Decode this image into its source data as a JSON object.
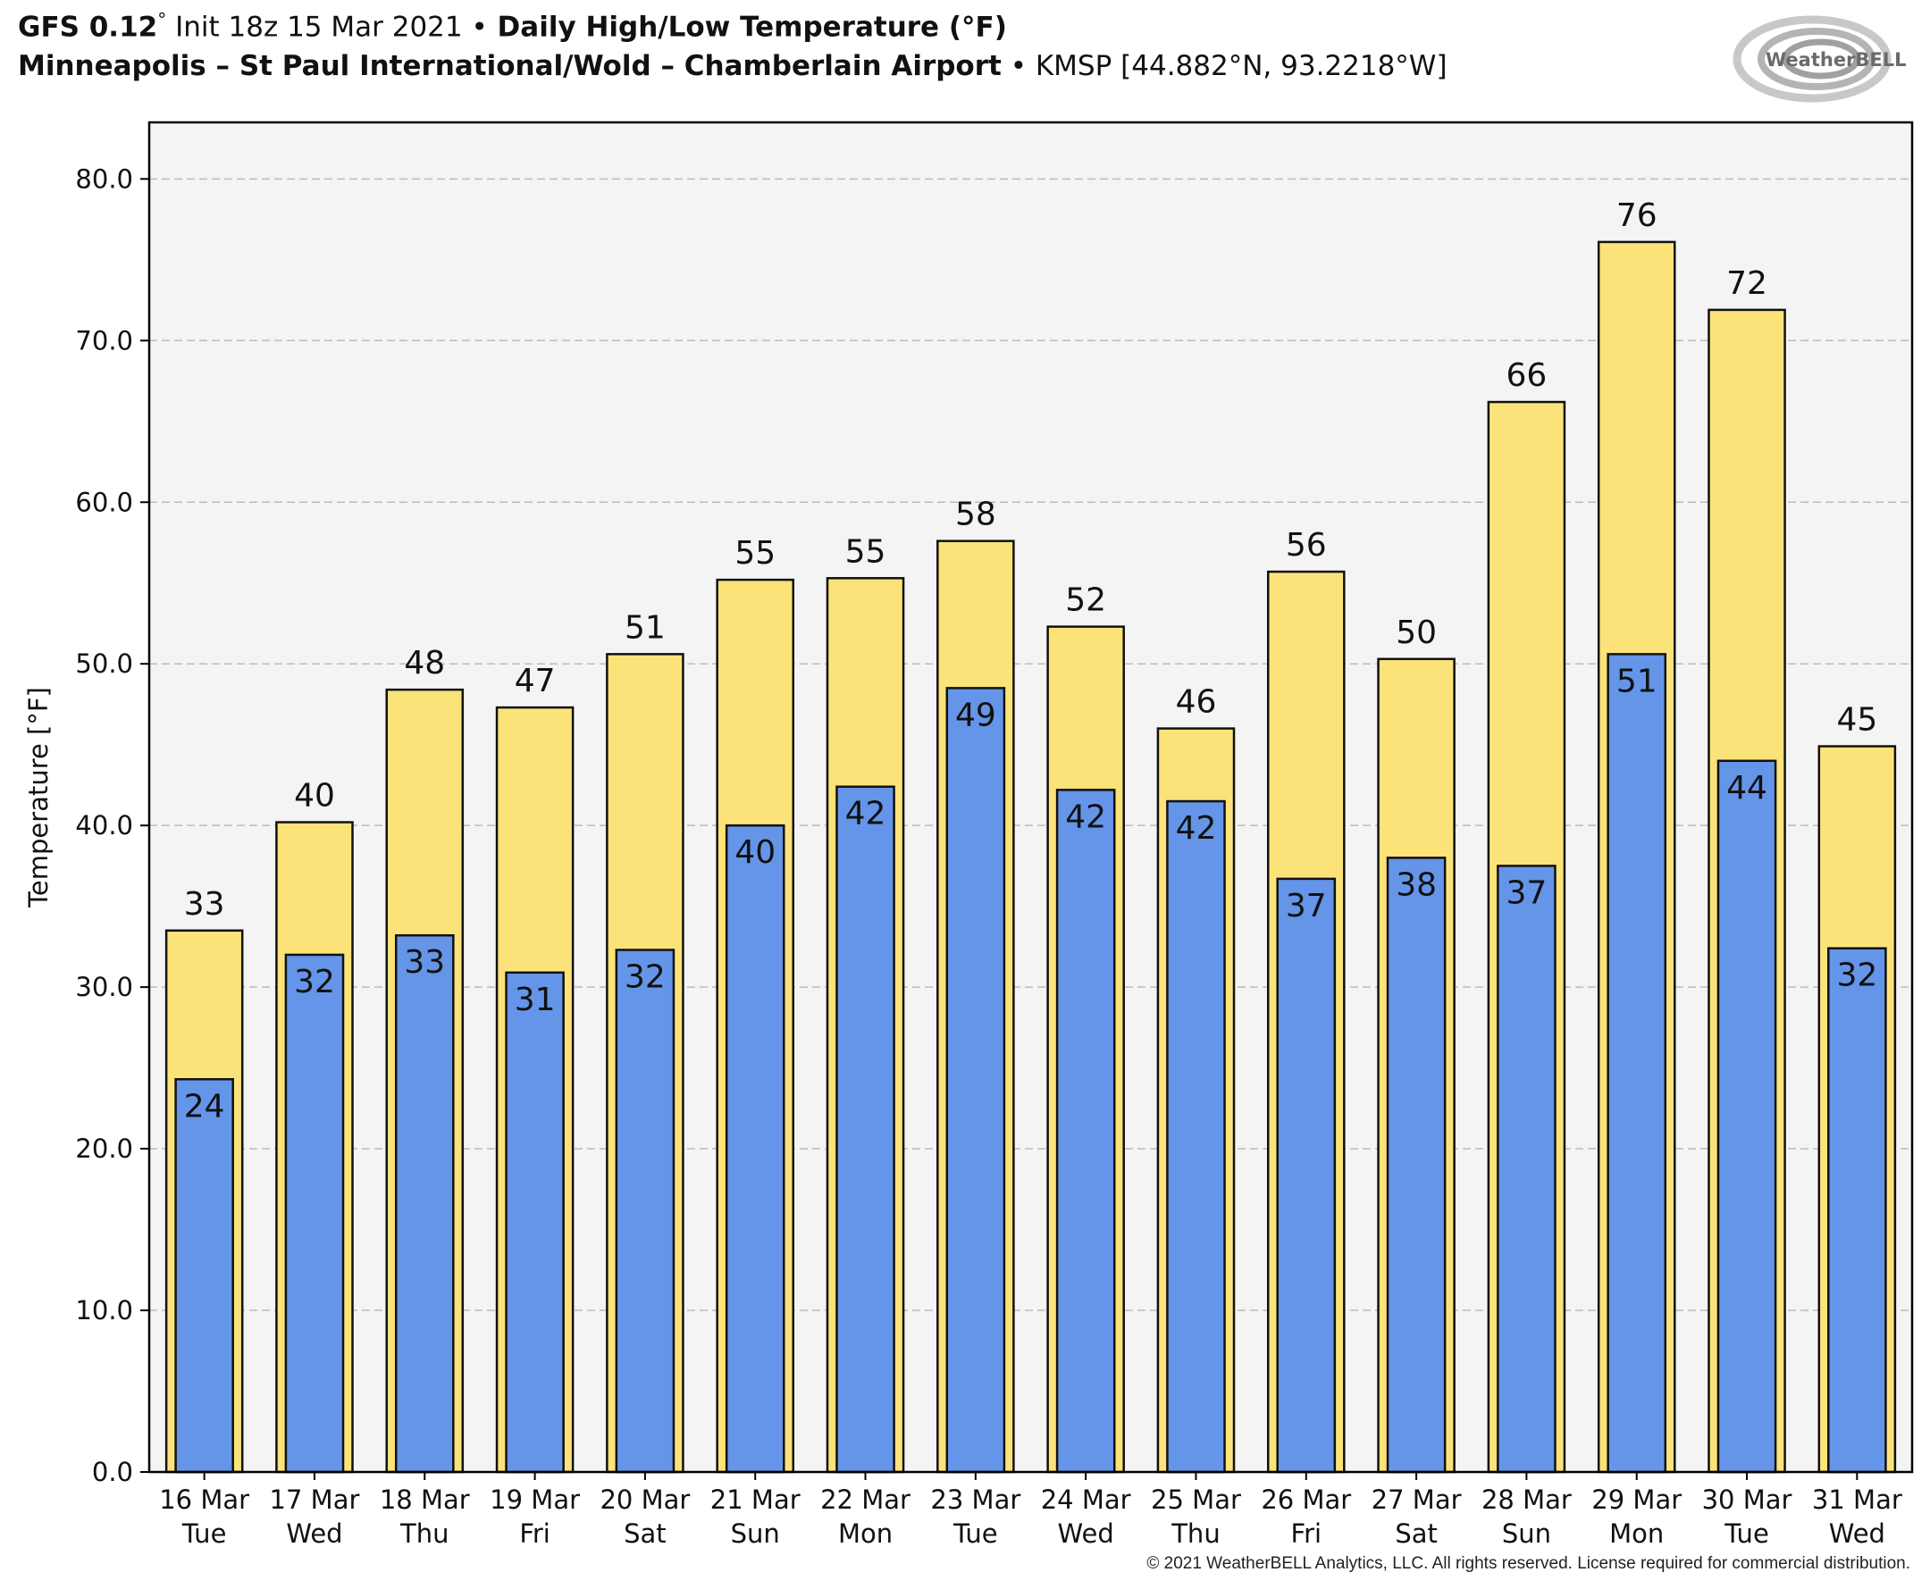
{
  "header": {
    "model": "GFS 0.12",
    "deg": "°",
    "init": " Init 18z 15 Mar 2021 ",
    "bullet": "•",
    "product": " Daily High/Low Temperature (°F)",
    "station_name": "Minneapolis – St Paul International/Wold – Chamberlain Airport",
    "station_id": " KMSP [44.882°N, 93.2218°W]"
  },
  "logo": {
    "text": "WeatherBELL",
    "icon": "weatherbell-swirl-logo"
  },
  "copyright": "© 2021 WeatherBELL Analytics, LLC. All rights reserved. License required for commercial distribution.",
  "colors": {
    "high": "#FBE37A",
    "low": "#6495E8",
    "plot_bg": "#F4F4F4",
    "grid": "#BBBBBB"
  },
  "chart_data": {
    "type": "bar",
    "ylabel": "Temperature [°F]",
    "ylim": [
      0,
      83.5
    ],
    "yticks": [
      "0.0",
      "10.0",
      "20.0",
      "30.0",
      "40.0",
      "50.0",
      "60.0",
      "70.0",
      "80.0"
    ],
    "grid": true,
    "categories": [
      {
        "date": "16 Mar",
        "day": "Tue"
      },
      {
        "date": "17 Mar",
        "day": "Wed"
      },
      {
        "date": "18 Mar",
        "day": "Thu"
      },
      {
        "date": "19 Mar",
        "day": "Fri"
      },
      {
        "date": "20 Mar",
        "day": "Sat"
      },
      {
        "date": "21 Mar",
        "day": "Sun"
      },
      {
        "date": "22 Mar",
        "day": "Mon"
      },
      {
        "date": "23 Mar",
        "day": "Tue"
      },
      {
        "date": "24 Mar",
        "day": "Wed"
      },
      {
        "date": "25 Mar",
        "day": "Thu"
      },
      {
        "date": "26 Mar",
        "day": "Fri"
      },
      {
        "date": "27 Mar",
        "day": "Sat"
      },
      {
        "date": "28 Mar",
        "day": "Sun"
      },
      {
        "date": "29 Mar",
        "day": "Mon"
      },
      {
        "date": "30 Mar",
        "day": "Tue"
      },
      {
        "date": "31 Mar",
        "day": "Wed"
      }
    ],
    "series": [
      {
        "key": "high",
        "values": [
          33.5,
          40.2,
          48.4,
          47.3,
          50.6,
          55.2,
          55.3,
          57.6,
          52.3,
          46.0,
          55.7,
          50.3,
          66.2,
          76.1,
          71.9,
          44.9
        ],
        "labels": [
          "33",
          "40",
          "48",
          "47",
          "51",
          "55",
          "55",
          "58",
          "52",
          "46",
          "56",
          "50",
          "66",
          "76",
          "72",
          "45"
        ]
      },
      {
        "key": "low",
        "values": [
          24.3,
          32.0,
          33.2,
          30.9,
          32.3,
          40.0,
          42.4,
          48.5,
          42.2,
          41.5,
          36.7,
          38.0,
          37.5,
          50.6,
          44.0,
          32.4
        ],
        "labels": [
          "24",
          "32",
          "33",
          "31",
          "32",
          "40",
          "42",
          "49",
          "42",
          "42",
          "37",
          "38",
          "37",
          "51",
          "44",
          "32"
        ]
      }
    ]
  }
}
